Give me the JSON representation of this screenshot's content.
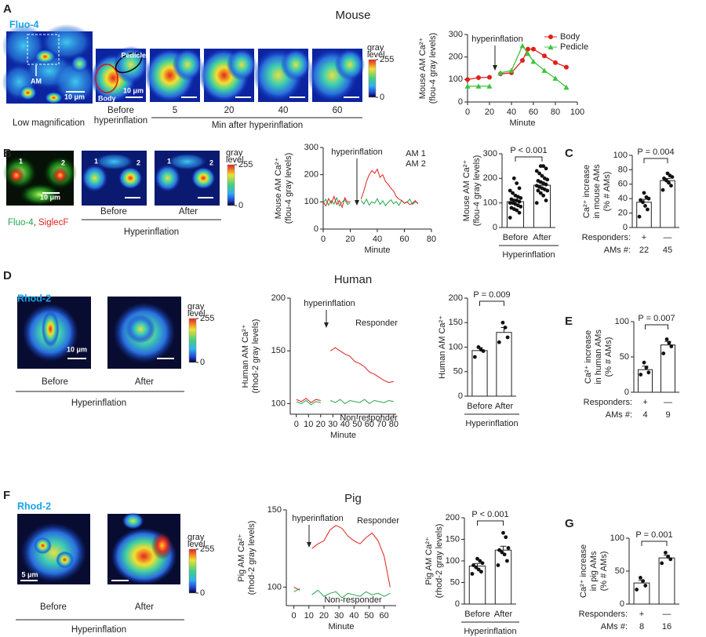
{
  "panels": {
    "A": {
      "letter": "A",
      "title": "Mouse",
      "dye": "Fluo-4",
      "am": "AM",
      "scale_bars": [
        "10 μm",
        "10 μm"
      ],
      "body": "Body",
      "pedicle": "Pedicle",
      "caption_low": "Low magnification",
      "caption_before": [
        "Before",
        "hyperinflation"
      ],
      "times": [
        5,
        20,
        40,
        60
      ],
      "caption_after": "Min after hyperinflation",
      "colorbar": {
        "title": [
          "gray",
          "level"
        ],
        "ticks": [
          0,
          255
        ]
      }
    },
    "B": {
      "letter": "B",
      "dye": [
        "Fluo-4",
        ", ",
        "SiglecF"
      ],
      "cells": [
        "1",
        "2"
      ],
      "scale_bar": "10 μm",
      "conditions": [
        "Before",
        "After"
      ],
      "group": "Hyperinflation",
      "colorbar": {
        "title": [
          "gray",
          "level"
        ],
        "ticks": [
          0,
          255
        ]
      }
    },
    "C": {
      "letter": "C"
    },
    "D": {
      "letter": "D",
      "title": "Human",
      "dye": "Rhod-2",
      "scale_bar": "10 μm",
      "conditions": [
        "Before",
        "After"
      ],
      "group": "Hyperinflation",
      "colorbar": {
        "title": [
          "gray",
          "level"
        ],
        "ticks": [
          0,
          255
        ]
      }
    },
    "E": {
      "letter": "E"
    },
    "F": {
      "letter": "F",
      "title": "Pig",
      "dye": "Rhod-2",
      "scale_bar": "5 μm",
      "conditions": [
        "Before",
        "After"
      ],
      "group": "Hyperinflation",
      "colorbar": {
        "title": [
          "gray",
          "level"
        ],
        "ticks": [
          0,
          255
        ]
      }
    },
    "G": {
      "letter": "G"
    }
  },
  "chart_data": [
    {
      "type": "line",
      "ylabel": [
        "Mouse AM Ca²⁺",
        "(flou-4 gray levels)"
      ],
      "xlabel": "Minute",
      "annotation": "hyperinflation",
      "legend": true,
      "x": [
        0,
        10,
        20,
        25,
        30,
        40,
        50,
        55,
        60,
        70,
        80,
        90
      ],
      "series": [
        {
          "name": "Body",
          "color": "#e0201b",
          "marker": "circle",
          "values": [
            100,
            108,
            110,
            null,
            125,
            130,
            185,
            235,
            235,
            205,
            175,
            155
          ]
        },
        {
          "name": "Pedicle",
          "color": "#3cc43c",
          "marker": "triangle",
          "values": [
            70,
            70,
            70,
            null,
            130,
            140,
            250,
            215,
            180,
            140,
            105,
            65
          ]
        }
      ],
      "xlim": [
        0,
        100
      ],
      "xticks": [
        0,
        20,
        40,
        60,
        80,
        100
      ],
      "ylim": [
        0,
        300
      ],
      "yticks": [
        0,
        100,
        200,
        300
      ]
    },
    {
      "type": "line",
      "ylabel": [
        "Mouse AM Ca²⁺",
        "(flou-4 gray levels)"
      ],
      "xlabel": "Minute",
      "annotation": "hyperinflation",
      "legend": false,
      "x": [
        0,
        2,
        4,
        6,
        8,
        10,
        12,
        14,
        16,
        18,
        20,
        22,
        24,
        26,
        28,
        30,
        32,
        34,
        36,
        38,
        40,
        42,
        44,
        46,
        48,
        50,
        52,
        54,
        56,
        58,
        60,
        62,
        64,
        66,
        68,
        70
      ],
      "series": [
        {
          "name": "AM 1",
          "color": "#22a84a",
          "values": [
            95,
            110,
            88,
            105,
            92,
            115,
            85,
            100,
            108,
            90,
            97,
            null,
            null,
            null,
            105,
            92,
            110,
            88,
            100,
            95,
            112,
            90,
            104,
            86,
            98,
            108,
            93,
            101,
            87,
            106,
            95,
            99,
            110,
            91,
            100,
            96
          ]
        },
        {
          "name": "AM 2",
          "color": "#e0201b",
          "values": [
            100,
            85,
            112,
            95,
            120,
            90,
            105,
            80,
            115,
            98,
            102,
            null,
            null,
            null,
            110,
            140,
            175,
            200,
            215,
            205,
            220,
            190,
            200,
            175,
            165,
            150,
            140,
            120,
            110,
            105,
            95,
            100,
            90,
            95,
            105,
            92
          ]
        }
      ],
      "xlim": [
        0,
        80
      ],
      "xticks": [
        0,
        20,
        40,
        60,
        80
      ],
      "ylim": [
        0,
        300
      ],
      "yticks": [
        0,
        100,
        200,
        300
      ]
    },
    {
      "type": "bar",
      "ylabel": [
        "Mouse AM Ca²⁺",
        "(flou-4 gray levels)"
      ],
      "categories": [
        "Before",
        "After"
      ],
      "group_label": "Hyperinflation",
      "values": [
        105,
        172
      ],
      "errors": [
        8,
        9
      ],
      "p_label": "P < 0.001",
      "points": [
        [
          40,
          60,
          70,
          75,
          80,
          85,
          90,
          95,
          100,
          100,
          105,
          110,
          110,
          115,
          120,
          125,
          130,
          140,
          150,
          160,
          180,
          200
        ],
        [
          100,
          110,
          130,
          140,
          150,
          150,
          155,
          160,
          165,
          170,
          175,
          180,
          185,
          190,
          195,
          200,
          210,
          220,
          230,
          240,
          250,
          250
        ]
      ],
      "ylim": [
        0,
        300
      ],
      "yticks": [
        0,
        100,
        200,
        300
      ]
    },
    {
      "type": "bar",
      "ylabel": [
        "Ca²⁺ increase",
        "in mouse AMs",
        "(% # AMs)"
      ],
      "categories": [
        "+",
        "—"
      ],
      "category_label": "Responders:",
      "n_label": "AMs #:",
      "n": [
        22,
        45
      ],
      "values": [
        35,
        65
      ],
      "errors": [
        4,
        3
      ],
      "p_label": "P = 0.004",
      "points": [
        [
          15,
          25,
          30,
          35,
          38,
          40,
          42,
          48
        ],
        [
          52,
          58,
          62,
          65,
          68,
          70,
          72,
          75
        ]
      ],
      "ylim": [
        0,
        100
      ],
      "yticks": [
        0,
        20,
        40,
        60,
        80,
        100
      ]
    },
    {
      "type": "line",
      "ylabel": [
        "Human AM Ca²⁺",
        "(rhod-2 gray levels)"
      ],
      "xlabel": "Minute",
      "annotation": "hyperinflation",
      "legend": false,
      "x": [
        0,
        4,
        8,
        12,
        16,
        20,
        24,
        28,
        32,
        36,
        40,
        44,
        48,
        52,
        56,
        60,
        64,
        68,
        72,
        76,
        80
      ],
      "series": [
        {
          "name": "Responder",
          "color": "#e0201b",
          "values": [
            104,
            102,
            105,
            101,
            104,
            103,
            null,
            150,
            153,
            150,
            147,
            145,
            140,
            138,
            135,
            130,
            128,
            125,
            122,
            120,
            121
          ]
        },
        {
          "name": "Non-responder",
          "color": "#22a84a",
          "values": [
            102,
            100,
            103,
            99,
            102,
            101,
            null,
            103,
            101,
            104,
            100,
            103,
            102,
            101,
            104,
            100,
            103,
            102,
            101,
            103,
            102
          ]
        }
      ],
      "xlim": [
        -5,
        82
      ],
      "xticks": [
        0,
        10,
        20,
        30,
        40,
        50,
        60,
        70,
        80
      ],
      "ylim": [
        90,
        200
      ],
      "yticks": [
        100,
        150,
        200
      ]
    },
    {
      "type": "bar",
      "ylabel": [
        "Human AM Ca²⁺"
      ],
      "categories": [
        "Before",
        "After"
      ],
      "group_label": "Hyperinflation",
      "values": [
        93,
        130
      ],
      "errors": [
        6,
        10
      ],
      "p_label": "P = 0.009",
      "points": [
        [
          80,
          92,
          95,
          100
        ],
        [
          110,
          120,
          140,
          150
        ]
      ],
      "ylim": [
        0,
        200
      ],
      "yticks": [
        0,
        50,
        100,
        150,
        200
      ]
    },
    {
      "type": "bar",
      "ylabel": [
        "Ca²⁺ increase",
        "in human AMs",
        "(% # AMs)"
      ],
      "categories": [
        "+",
        "—"
      ],
      "category_label": "Responders:",
      "n_label": "AMs #:",
      "n": [
        4,
        9
      ],
      "values": [
        32,
        67
      ],
      "errors": [
        5,
        5
      ],
      "p_label": "P = 0.007",
      "points": [
        [
          25,
          28,
          35,
          42
        ],
        [
          55,
          65,
          70,
          75
        ]
      ],
      "ylim": [
        0,
        100
      ],
      "yticks": [
        0,
        50,
        100
      ]
    },
    {
      "type": "line",
      "ylabel": [
        "Pig AM Ca²⁺",
        "(rhod-2 gray levels)"
      ],
      "xlabel": "Minute",
      "annotation": "hyperinflation",
      "legend": false,
      "x": [
        0,
        4,
        8,
        12,
        16,
        20,
        24,
        28,
        32,
        36,
        40,
        44,
        48,
        52,
        56,
        60,
        64
      ],
      "series": [
        {
          "name": "Responder",
          "color": "#e0201b",
          "values": [
            100,
            98,
            null,
            125,
            128,
            130,
            137,
            140,
            138,
            133,
            130,
            128,
            132,
            135,
            130,
            120,
            100
          ]
        },
        {
          "name": "Non-responder",
          "color": "#22a84a",
          "values": [
            97,
            99,
            null,
            95,
            98,
            94,
            96,
            97,
            93,
            96,
            95,
            94,
            97,
            95,
            96,
            94,
            96
          ]
        }
      ],
      "xlim": [
        -5,
        68
      ],
      "xticks": [
        0,
        10,
        20,
        30,
        40,
        50,
        60
      ],
      "ylim": [
        88,
        150
      ],
      "yticks": [
        100,
        150
      ]
    },
    {
      "type": "bar",
      "ylabel": [
        "Pig AM Ca²⁺",
        "(rhod-2 gray levels)"
      ],
      "categories": [
        "Before",
        "After"
      ],
      "group_label": "Hyperinflation",
      "values": [
        88,
        125
      ],
      "errors": [
        6,
        9
      ],
      "p_label": "P < 0.001",
      "points": [
        [
          70,
          75,
          80,
          85,
          90,
          95,
          100,
          105
        ],
        [
          90,
          100,
          115,
          120,
          125,
          130,
          155,
          165
        ]
      ],
      "ylim": [
        0,
        200
      ],
      "yticks": [
        0,
        50,
        100,
        150,
        200
      ]
    },
    {
      "type": "bar",
      "ylabel": [
        "Ca²⁺ increase",
        "in pig AMs",
        "(% # AMs)"
      ],
      "categories": [
        "+",
        "—"
      ],
      "category_label": "Responders:",
      "n_label": "AMs #:",
      "n": [
        8,
        16
      ],
      "values": [
        32,
        70
      ],
      "errors": [
        4,
        4
      ],
      "p_label": "P = 0.001",
      "points": [
        [
          22,
          28,
          35,
          40
        ],
        [
          62,
          68,
          72,
          78
        ]
      ],
      "ylim": [
        0,
        100
      ],
      "yticks": [
        0,
        50,
        100
      ]
    }
  ]
}
